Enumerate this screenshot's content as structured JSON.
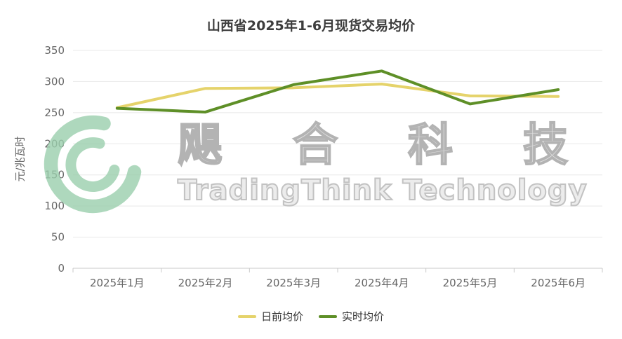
{
  "chart_data": {
    "type": "line",
    "title": "山西省2025年1-6月现货交易均价",
    "xlabel": "",
    "ylabel": "元/兆瓦时",
    "categories": [
      "2025年1月",
      "2025年2月",
      "2025年3月",
      "2025年4月",
      "2025年5月",
      "2025年6月"
    ],
    "series": [
      {
        "name": "日前均价",
        "color": "#e5d36b",
        "values": [
          258,
          289,
          290,
          296,
          277,
          276
        ]
      },
      {
        "name": "实时均价",
        "color": "#5e8f27",
        "values": [
          257,
          251,
          295,
          317,
          264,
          287
        ]
      }
    ],
    "ylim": [
      0,
      350
    ],
    "yticks": [
      0,
      50,
      100,
      150,
      200,
      250,
      300,
      350
    ],
    "grid": true,
    "legend_position": "bottom"
  },
  "watermark": {
    "line1": "飓合科技",
    "line2": "TradingThink Technology",
    "logo_color": "#9bcfad"
  }
}
